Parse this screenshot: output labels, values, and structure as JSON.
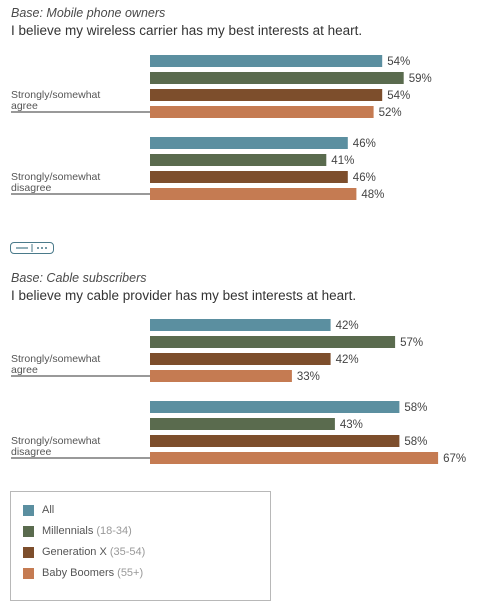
{
  "colors": {
    "all": "#5b8fa0",
    "millennials": "#5a6b4e",
    "genx": "#7d4e2c",
    "boomers": "#c57b52"
  },
  "chart_data": [
    {
      "type": "bar",
      "base_label": "Base: Mobile phone owners",
      "title": "I believe my wireless carrier has my best interests at heart.",
      "categories": [
        "Strongly/somewhat agree",
        "Strongly/somewhat disagree"
      ],
      "series": [
        {
          "name": "All",
          "values": [
            54,
            46
          ]
        },
        {
          "name": "Millennials (18-34)",
          "values": [
            59,
            41
          ]
        },
        {
          "name": "Generation X (35-54)",
          "values": [
            54,
            46
          ]
        },
        {
          "name": "Baby Boomers (55+)",
          "values": [
            52,
            48
          ]
        }
      ],
      "value_suffix": "%"
    },
    {
      "type": "bar",
      "base_label": "Base: Cable subscribers",
      "title": "I believe my cable provider has my best interests at heart.",
      "categories": [
        "Strongly/somewhat agree",
        "Strongly/somewhat disagree"
      ],
      "series": [
        {
          "name": "All",
          "values": [
            42,
            58
          ]
        },
        {
          "name": "Millennials (18-34)",
          "values": [
            57,
            43
          ]
        },
        {
          "name": "Generation X (35-54)",
          "values": [
            42,
            58
          ]
        },
        {
          "name": "Baby Boomers (55+)",
          "values": [
            33,
            67
          ]
        }
      ],
      "value_suffix": "%"
    }
  ],
  "legend": [
    {
      "label": "All",
      "sub": "",
      "color": "#5b8fa0"
    },
    {
      "label": "Millennials",
      "sub": "(18-34)",
      "color": "#5a6b4e"
    },
    {
      "label": "Generation X",
      "sub": "(35-54)",
      "color": "#7d4e2c"
    },
    {
      "label": "Baby Boomers",
      "sub": "(55+)",
      "color": "#c57b52"
    }
  ]
}
